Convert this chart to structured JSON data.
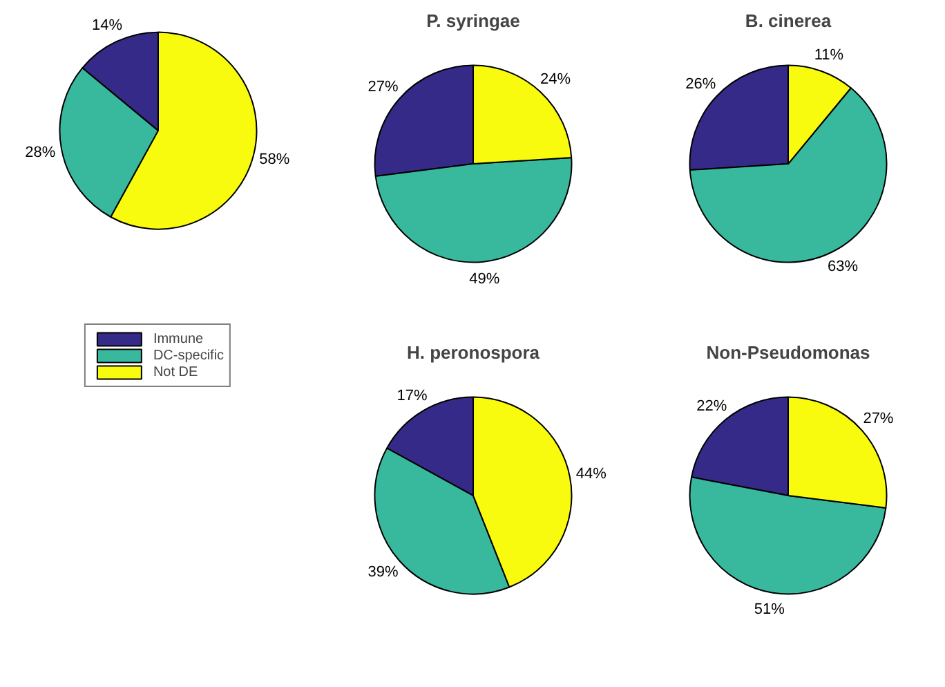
{
  "chart_data": [
    {
      "type": "pie",
      "categories": [
        "Immune",
        "DC-specific",
        "Not DE"
      ],
      "values": [
        14,
        28,
        58
      ],
      "value_labels": [
        "14%",
        "28%",
        "58%"
      ],
      "colors": [
        "#352a87",
        "#38b99e",
        "#f9fb0e"
      ],
      "legend": "bottom"
    },
    {
      "type": "pie",
      "title": "P. syringae",
      "categories": [
        null,
        null,
        null
      ],
      "values": [
        27,
        49,
        24
      ],
      "value_labels": [
        "27%",
        "49%",
        "24%"
      ],
      "colors": [
        "#352a87",
        "#38b99e",
        "#f9fb0e"
      ]
    },
    {
      "type": "pie",
      "title": "B. cinerea",
      "categories": [
        null,
        null,
        null
      ],
      "values": [
        26,
        63,
        11
      ],
      "value_labels": [
        "26%",
        "63%",
        "11%"
      ],
      "colors": [
        "#352a87",
        "#38b99e",
        "#f9fb0e"
      ]
    },
    {
      "type": "pie",
      "title": "H. peronospora",
      "categories": [
        null,
        null,
        null
      ],
      "values": [
        17,
        39,
        44
      ],
      "value_labels": [
        "17%",
        "39%",
        "44%"
      ],
      "colors": [
        "#352a87",
        "#38b99e",
        "#f9fb0e"
      ]
    },
    {
      "type": "pie",
      "title": "Non-Pseudomonas",
      "categories": [
        null,
        null,
        null
      ],
      "values": [
        22,
        51,
        27
      ],
      "value_labels": [
        "22%",
        "51%",
        "27%"
      ],
      "colors": [
        "#352a87",
        "#38b99e",
        "#f9fb0e"
      ]
    }
  ]
}
